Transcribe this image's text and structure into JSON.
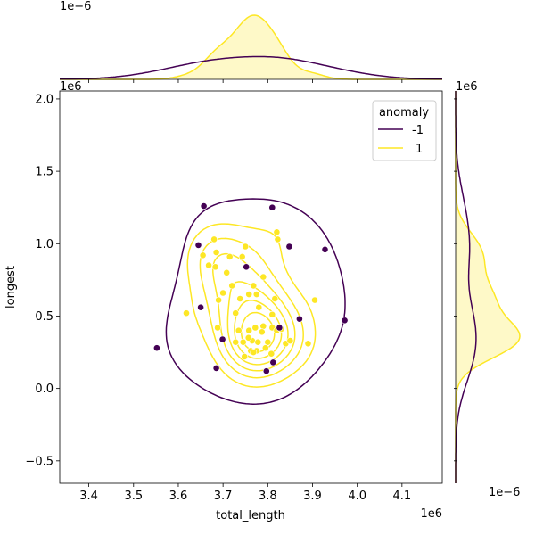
{
  "chart_data": {
    "type": "scatter",
    "subtype": "jointplot-kde",
    "xlabel": "total_length",
    "ylabel": "longest",
    "x_offset_label": "1e6",
    "y_offset_label": "1e6",
    "top_marginal_offset_label": "1e−6",
    "right_marginal_offset_label": "1e−6",
    "xlim": [
      3.335,
      4.19
    ],
    "ylim": [
      -0.655,
      2.055
    ],
    "x_ticks": [
      3.4,
      3.5,
      3.6,
      3.7,
      3.8,
      3.9,
      4.0,
      4.1
    ],
    "x_tick_labels": [
      "3.4",
      "3.5",
      "3.6",
      "3.7",
      "3.8",
      "3.9",
      "4.0",
      "4.1"
    ],
    "y_ticks": [
      -0.5,
      0.0,
      0.5,
      1.0,
      1.5,
      2.0
    ],
    "y_tick_labels": [
      "−0.5",
      "0.0",
      "0.5",
      "1.0",
      "1.5",
      "2.0"
    ],
    "legend": {
      "title": "anomaly",
      "position": "top-right",
      "entries": [
        {
          "label": "-1",
          "color": "#440154"
        },
        {
          "label": "1",
          "color": "#fde725"
        }
      ]
    },
    "colors": {
      "anomaly": "#440154",
      "normal": "#fde725"
    },
    "series": [
      {
        "name": "-1",
        "color": "#440154",
        "points": [
          [
            3.552,
            0.28
          ],
          [
            3.645,
            0.99
          ],
          [
            3.657,
            1.26
          ],
          [
            3.65,
            0.56
          ],
          [
            3.685,
            0.14
          ],
          [
            3.699,
            0.34
          ],
          [
            3.752,
            0.84
          ],
          [
            3.81,
            1.25
          ],
          [
            3.848,
            0.98
          ],
          [
            3.797,
            0.12
          ],
          [
            3.812,
            0.18
          ],
          [
            3.871,
            0.48
          ],
          [
            3.928,
            0.96
          ],
          [
            3.972,
            0.47
          ],
          [
            3.826,
            0.42
          ]
        ]
      },
      {
        "name": "1",
        "color": "#fde725",
        "points": [
          [
            3.618,
            0.52
          ],
          [
            3.655,
            0.92
          ],
          [
            3.668,
            0.85
          ],
          [
            3.68,
            1.03
          ],
          [
            3.685,
            0.94
          ],
          [
            3.683,
            0.84
          ],
          [
            3.69,
            0.61
          ],
          [
            3.7,
            0.66
          ],
          [
            3.708,
            0.8
          ],
          [
            3.715,
            0.91
          ],
          [
            3.72,
            0.71
          ],
          [
            3.728,
            0.52
          ],
          [
            3.738,
            0.62
          ],
          [
            3.743,
            0.91
          ],
          [
            3.75,
            0.98
          ],
          [
            3.758,
            0.65
          ],
          [
            3.768,
            0.71
          ],
          [
            3.775,
            0.65
          ],
          [
            3.78,
            0.56
          ],
          [
            3.79,
            0.77
          ],
          [
            3.81,
            0.51
          ],
          [
            3.816,
            0.62
          ],
          [
            3.82,
            1.08
          ],
          [
            3.822,
            1.03
          ],
          [
            3.728,
            0.32
          ],
          [
            3.745,
            0.32
          ],
          [
            3.765,
            0.33
          ],
          [
            3.778,
            0.32
          ],
          [
            3.8,
            0.32
          ],
          [
            3.81,
            0.42
          ],
          [
            3.82,
            0.4
          ],
          [
            3.83,
            0.41
          ],
          [
            3.84,
            0.31
          ],
          [
            3.85,
            0.33
          ],
          [
            3.758,
            0.4
          ],
          [
            3.772,
            0.42
          ],
          [
            3.79,
            0.43
          ],
          [
            3.735,
            0.4
          ],
          [
            3.748,
            0.22
          ],
          [
            3.762,
            0.26
          ],
          [
            3.775,
            0.26
          ],
          [
            3.795,
            0.28
          ],
          [
            3.688,
            0.42
          ],
          [
            3.768,
            0.25
          ],
          [
            3.757,
            0.35
          ],
          [
            3.787,
            0.39
          ],
          [
            3.905,
            0.61
          ],
          [
            3.89,
            0.31
          ],
          [
            3.808,
            0.24
          ]
        ]
      }
    ]
  }
}
